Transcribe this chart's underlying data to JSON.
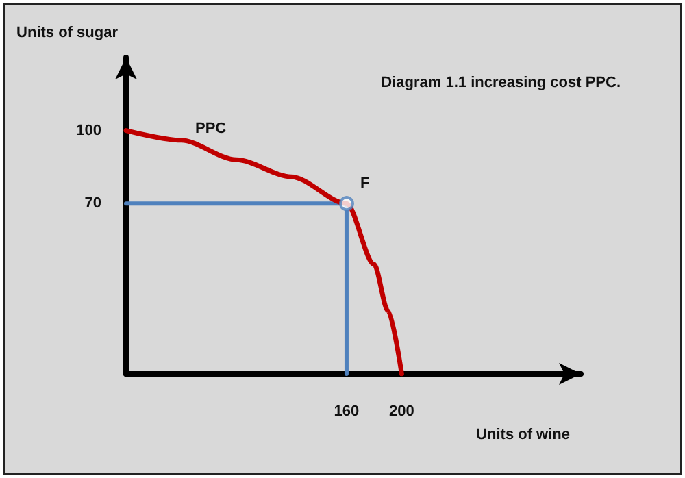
{
  "chart_data": {
    "type": "line",
    "title": "Diagram 1.1 increasing cost PPC.",
    "xlabel": "Units of wine",
    "ylabel": "Units of sugar",
    "series": [
      {
        "name": "PPC",
        "color": "#c00000",
        "x": [
          0,
          40,
          80,
          120,
          160,
          180,
          190,
          200
        ],
        "values": [
          100,
          96,
          88,
          81,
          70,
          45,
          26,
          0
        ]
      },
      {
        "color": "#4f81bd",
        "x": [
          0,
          160,
          160
        ],
        "values": [
          70,
          70,
          0
        ]
      },
      {
        "type": "scatter",
        "color": "#4f81bd",
        "x": [
          160
        ],
        "values": [
          70
        ]
      }
    ],
    "annotations": [
      {
        "text": "F",
        "x": 160,
        "y": 70
      }
    ],
    "xlim": [
      0,
      330
    ],
    "ylim": [
      0,
      130
    ],
    "xticks": [
      160,
      200
    ],
    "yticks": [
      70,
      100
    ],
    "grid": false,
    "legend": false
  }
}
